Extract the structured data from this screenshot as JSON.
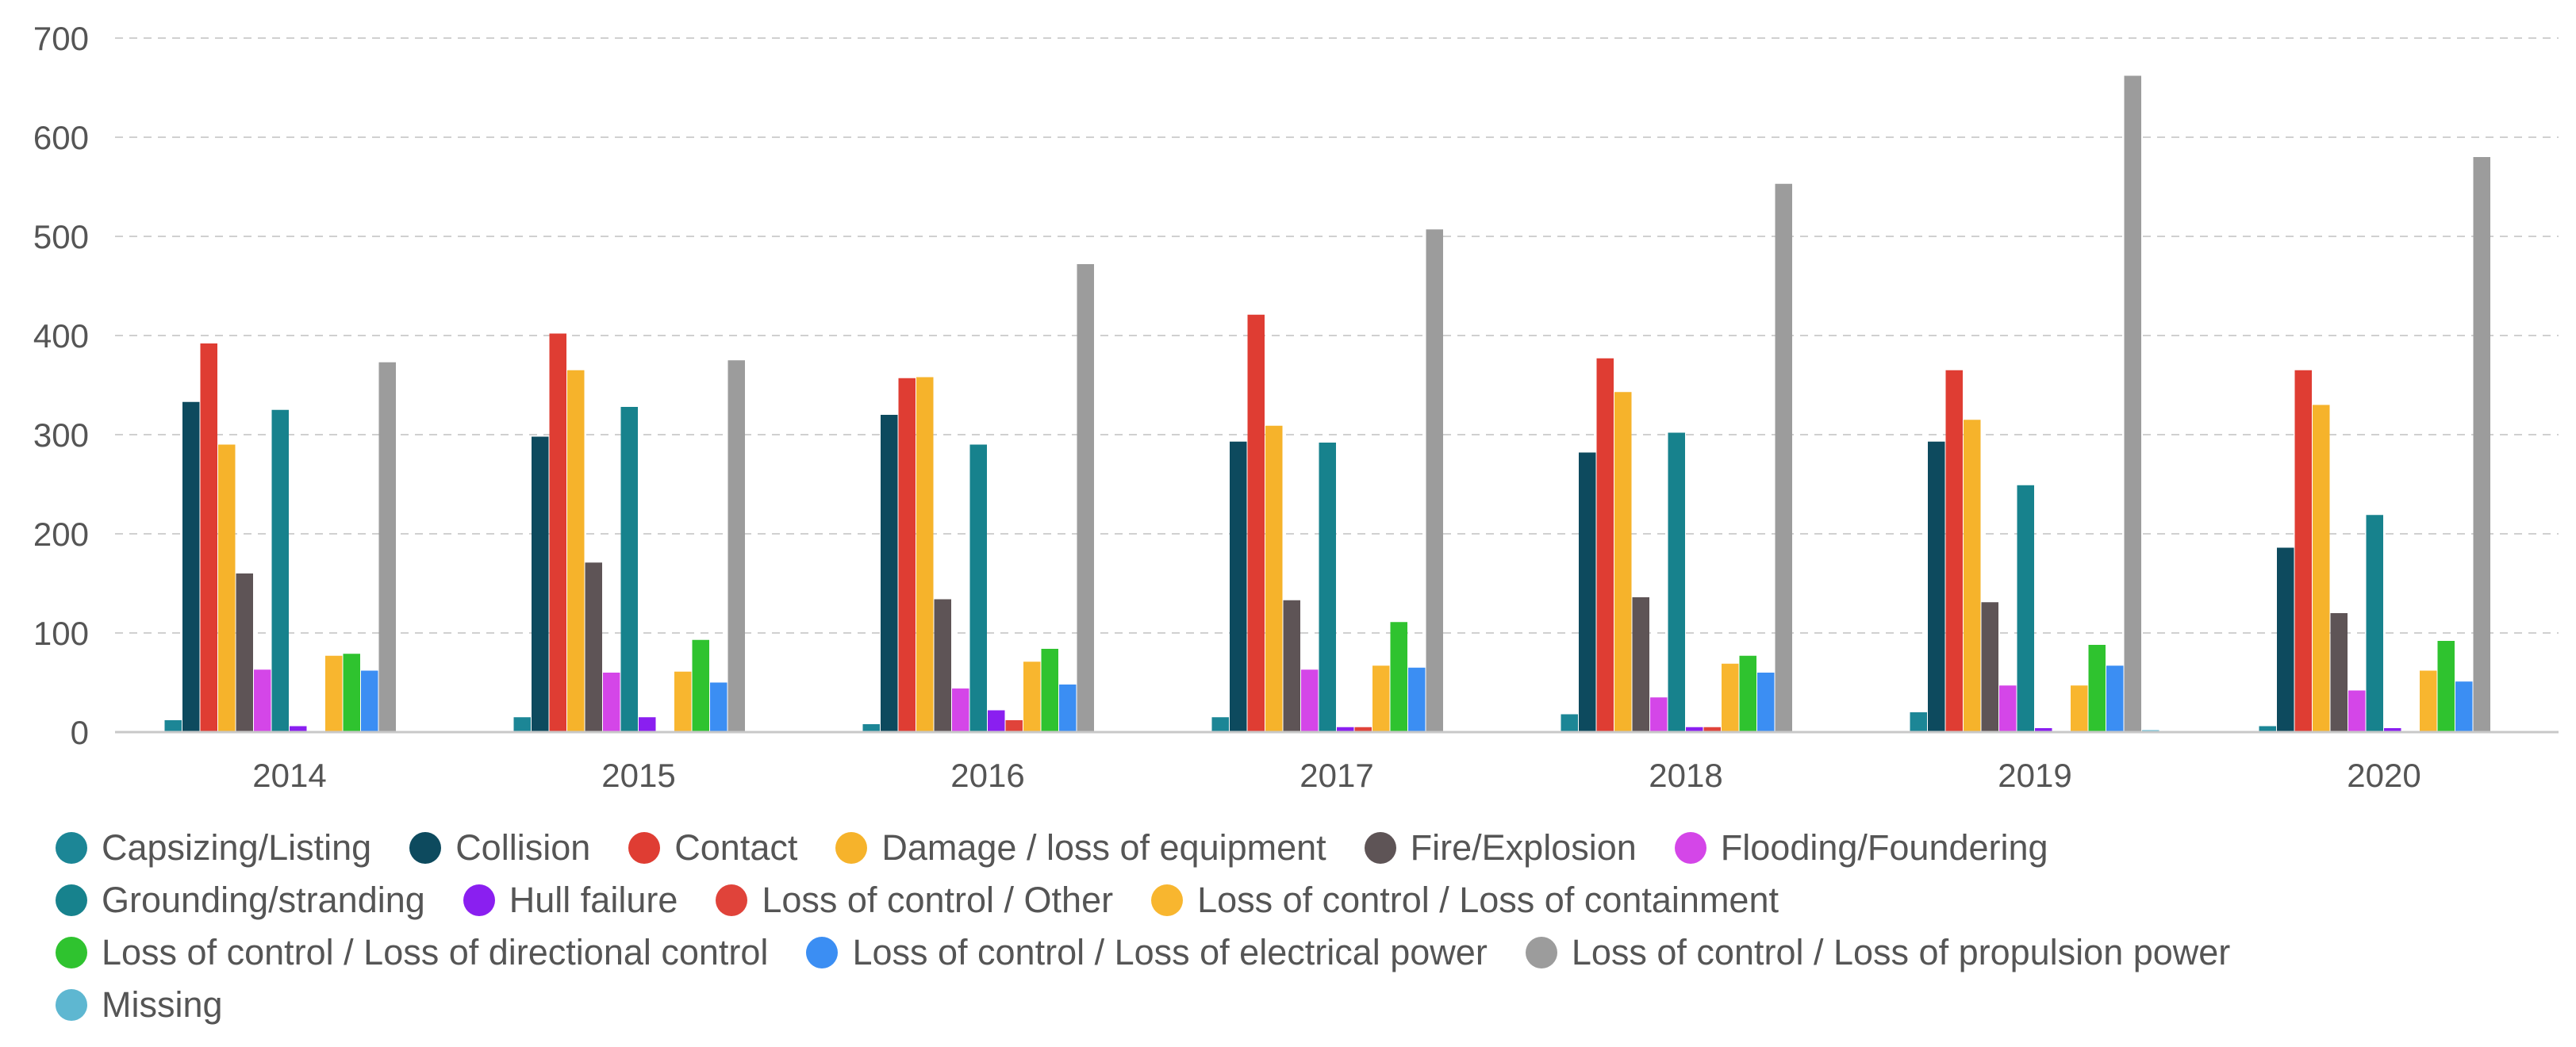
{
  "chart_data": {
    "type": "bar",
    "categories": [
      "2014",
      "2015",
      "2016",
      "2017",
      "2018",
      "2019",
      "2020"
    ],
    "ylim": [
      0,
      700
    ],
    "yticks": [
      0,
      100,
      200,
      300,
      400,
      500,
      600,
      700
    ],
    "grid": true,
    "legend_position": "bottom",
    "series": [
      {
        "name": "Capsizing/Listing",
        "color": "#1c8696",
        "values": [
          12,
          15,
          8,
          15,
          18,
          20,
          6
        ]
      },
      {
        "name": "Collision",
        "color": "#0d4a5e",
        "values": [
          333,
          298,
          320,
          293,
          282,
          293,
          186
        ]
      },
      {
        "name": "Contact",
        "color": "#df3d33",
        "values": [
          392,
          402,
          357,
          421,
          377,
          365,
          365
        ]
      },
      {
        "name": "Damage / loss of equipment",
        "color": "#f6b32b",
        "values": [
          290,
          365,
          358,
          309,
          343,
          315,
          330
        ]
      },
      {
        "name": "Fire/Explosion",
        "color": "#5e5456",
        "values": [
          160,
          171,
          134,
          133,
          136,
          131,
          120
        ]
      },
      {
        "name": "Flooding/Foundering",
        "color": "#d446e8",
        "values": [
          63,
          60,
          44,
          63,
          35,
          47,
          42
        ]
      },
      {
        "name": "Grounding/stranding",
        "color": "#17828d",
        "values": [
          325,
          328,
          290,
          292,
          302,
          249,
          219
        ]
      },
      {
        "name": "Hull failure",
        "color": "#8a1ff0",
        "values": [
          6,
          15,
          22,
          5,
          5,
          4,
          4
        ]
      },
      {
        "name": "Loss of control / Other",
        "color": "#e0433a",
        "values": [
          0,
          0,
          12,
          5,
          5,
          0,
          0
        ]
      },
      {
        "name": "Loss of control / Loss of containment",
        "color": "#f8b62f",
        "values": [
          77,
          61,
          71,
          67,
          69,
          47,
          62
        ]
      },
      {
        "name": "Loss of control / Loss of directional control",
        "color": "#2fc32f",
        "values": [
          79,
          93,
          84,
          111,
          77,
          88,
          92
        ]
      },
      {
        "name": "Loss of control / Loss of electrical power",
        "color": "#3b8ef3",
        "values": [
          62,
          50,
          48,
          65,
          60,
          67,
          51
        ]
      },
      {
        "name": "Loss of control / Loss of propulsion power",
        "color": "#9c9c9c",
        "values": [
          373,
          375,
          472,
          507,
          553,
          662,
          580
        ]
      },
      {
        "name": "Missing",
        "color": "#5eb7d1",
        "values": [
          0,
          0,
          0,
          0,
          0,
          2,
          0
        ]
      }
    ]
  }
}
